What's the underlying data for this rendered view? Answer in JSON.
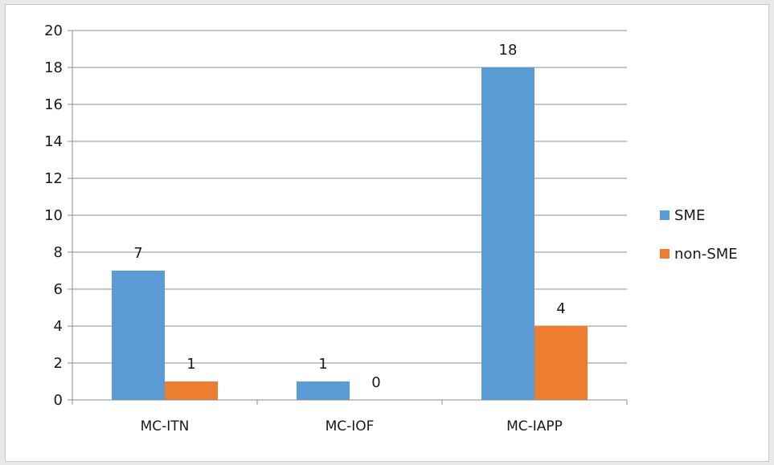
{
  "chart_data": {
    "type": "bar",
    "categories": [
      "MC-ITN",
      "MC-IOF",
      "MC-IAPP"
    ],
    "series": [
      {
        "name": "SME",
        "values": [
          7,
          1,
          18
        ],
        "color": "#5b9bd5"
      },
      {
        "name": "non-SME",
        "values": [
          1,
          0,
          4
        ],
        "color": "#ed7d31"
      }
    ],
    "yticks": [
      "0",
      "2",
      "4",
      "6",
      "8",
      "10",
      "12",
      "14",
      "16",
      "18",
      "20"
    ],
    "ylim": [
      0,
      20
    ],
    "title": "",
    "xlabel": "",
    "ylabel": "",
    "grid": true,
    "legend_position": "right"
  }
}
